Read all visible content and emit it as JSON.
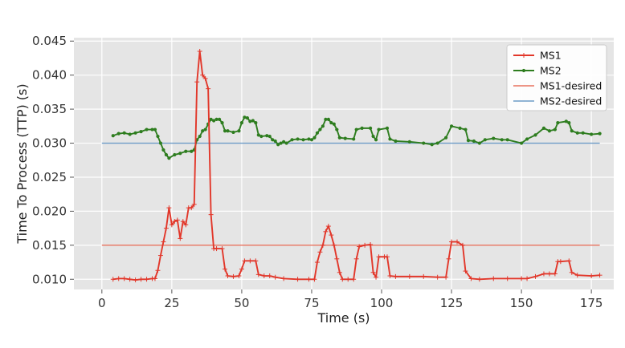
{
  "chart_data": {
    "type": "line",
    "title": "",
    "xlabel": "Time (s)",
    "ylabel": "Time To Process (TTP) (s)",
    "xlim": [
      -10,
      183
    ],
    "ylim": [
      0.0085,
      0.0455
    ],
    "xticks": [
      0,
      25,
      50,
      75,
      100,
      125,
      150,
      175
    ],
    "xtick_labels": [
      "0",
      "25",
      "50",
      "75",
      "100",
      "125",
      "150",
      "175"
    ],
    "yticks": [
      0.01,
      0.015,
      0.02,
      0.025,
      0.03,
      0.035,
      0.04,
      0.045
    ],
    "ytick_labels": [
      "0.010",
      "0.015",
      "0.020",
      "0.025",
      "0.030",
      "0.035",
      "0.040",
      "0.045"
    ],
    "grid": true,
    "legend_position": "top-right",
    "series": [
      {
        "name": "MS1",
        "color": "#e2372a",
        "marker": "plus",
        "points": [
          [
            4,
            0.01
          ],
          [
            6,
            0.0101
          ],
          [
            8,
            0.0101
          ],
          [
            10,
            0.01
          ],
          [
            12,
            0.0099
          ],
          [
            14,
            0.01
          ],
          [
            16,
            0.01
          ],
          [
            18,
            0.0101
          ],
          [
            19,
            0.0101
          ],
          [
            20,
            0.0113
          ],
          [
            21,
            0.0135
          ],
          [
            22,
            0.0155
          ],
          [
            23,
            0.0175
          ],
          [
            24,
            0.0205
          ],
          [
            25,
            0.018
          ],
          [
            26,
            0.0185
          ],
          [
            27,
            0.0187
          ],
          [
            28,
            0.016
          ],
          [
            29,
            0.0185
          ],
          [
            30,
            0.018
          ],
          [
            31,
            0.0205
          ],
          [
            32,
            0.0205
          ],
          [
            33,
            0.021
          ],
          [
            34,
            0.039
          ],
          [
            35,
            0.0435
          ],
          [
            36,
            0.04
          ],
          [
            37,
            0.0395
          ],
          [
            38,
            0.038
          ],
          [
            39,
            0.0195
          ],
          [
            40,
            0.0145
          ],
          [
            41,
            0.0145
          ],
          [
            43,
            0.0145
          ],
          [
            44,
            0.0115
          ],
          [
            45,
            0.0105
          ],
          [
            47,
            0.0104
          ],
          [
            49,
            0.0105
          ],
          [
            50,
            0.0115
          ],
          [
            51,
            0.0127
          ],
          [
            53,
            0.0127
          ],
          [
            55,
            0.0127
          ],
          [
            56,
            0.0107
          ],
          [
            58,
            0.0105
          ],
          [
            60,
            0.0105
          ],
          [
            62,
            0.0103
          ],
          [
            65,
            0.0101
          ],
          [
            70,
            0.01
          ],
          [
            74,
            0.01
          ],
          [
            76,
            0.01
          ],
          [
            77,
            0.0125
          ],
          [
            78,
            0.014
          ],
          [
            79,
            0.015
          ],
          [
            80,
            0.017
          ],
          [
            81,
            0.0178
          ],
          [
            82,
            0.0165
          ],
          [
            83,
            0.015
          ],
          [
            84,
            0.013
          ],
          [
            85,
            0.011
          ],
          [
            86,
            0.01
          ],
          [
            88,
            0.01
          ],
          [
            90,
            0.01
          ],
          [
            91,
            0.013
          ],
          [
            92,
            0.0148
          ],
          [
            94,
            0.015
          ],
          [
            96,
            0.0151
          ],
          [
            97,
            0.011
          ],
          [
            98,
            0.0103
          ],
          [
            99,
            0.0133
          ],
          [
            101,
            0.0133
          ],
          [
            102,
            0.0133
          ],
          [
            103,
            0.0105
          ],
          [
            105,
            0.0104
          ],
          [
            110,
            0.0104
          ],
          [
            115,
            0.0104
          ],
          [
            120,
            0.0103
          ],
          [
            123,
            0.0103
          ],
          [
            124,
            0.013
          ],
          [
            125,
            0.0155
          ],
          [
            127,
            0.0155
          ],
          [
            129,
            0.015
          ],
          [
            130,
            0.0112
          ],
          [
            132,
            0.0101
          ],
          [
            135,
            0.01
          ],
          [
            140,
            0.0101
          ],
          [
            145,
            0.0101
          ],
          [
            150,
            0.0101
          ],
          [
            152,
            0.0101
          ],
          [
            155,
            0.0104
          ],
          [
            158,
            0.0108
          ],
          [
            160,
            0.0108
          ],
          [
            162,
            0.0108
          ],
          [
            163,
            0.0126
          ],
          [
            164,
            0.0126
          ],
          [
            167,
            0.0127
          ],
          [
            168,
            0.011
          ],
          [
            170,
            0.0106
          ],
          [
            175,
            0.0105
          ],
          [
            178,
            0.0106
          ]
        ]
      },
      {
        "name": "MS2",
        "color": "#2e7d1f",
        "marker": "dot",
        "points": [
          [
            4,
            0.0311
          ],
          [
            6,
            0.0314
          ],
          [
            8,
            0.0315
          ],
          [
            10,
            0.0313
          ],
          [
            12,
            0.0315
          ],
          [
            14,
            0.0317
          ],
          [
            16,
            0.032
          ],
          [
            18,
            0.032
          ],
          [
            19,
            0.032
          ],
          [
            20,
            0.031
          ],
          [
            21,
            0.03
          ],
          [
            22,
            0.029
          ],
          [
            23,
            0.0283
          ],
          [
            24,
            0.0278
          ],
          [
            26,
            0.0283
          ],
          [
            28,
            0.0285
          ],
          [
            30,
            0.0288
          ],
          [
            32,
            0.0288
          ],
          [
            33,
            0.029
          ],
          [
            34,
            0.0305
          ],
          [
            35,
            0.031
          ],
          [
            36,
            0.0318
          ],
          [
            37,
            0.032
          ],
          [
            38,
            0.0328
          ],
          [
            39,
            0.0335
          ],
          [
            40,
            0.0333
          ],
          [
            41,
            0.0335
          ],
          [
            42,
            0.0335
          ],
          [
            43,
            0.033
          ],
          [
            44,
            0.0318
          ],
          [
            45,
            0.0318
          ],
          [
            47,
            0.0316
          ],
          [
            49,
            0.0318
          ],
          [
            50,
            0.033
          ],
          [
            51,
            0.0338
          ],
          [
            52,
            0.0337
          ],
          [
            53,
            0.0332
          ],
          [
            54,
            0.0333
          ],
          [
            55,
            0.033
          ],
          [
            56,
            0.0312
          ],
          [
            57,
            0.031
          ],
          [
            59,
            0.0311
          ],
          [
            60,
            0.031
          ],
          [
            61,
            0.0305
          ],
          [
            62,
            0.0303
          ],
          [
            63,
            0.0298
          ],
          [
            64,
            0.03
          ],
          [
            65,
            0.0302
          ],
          [
            66,
            0.03
          ],
          [
            68,
            0.0305
          ],
          [
            70,
            0.0306
          ],
          [
            72,
            0.0305
          ],
          [
            74,
            0.0306
          ],
          [
            75,
            0.0305
          ],
          [
            76,
            0.0308
          ],
          [
            77,
            0.0315
          ],
          [
            78,
            0.032
          ],
          [
            79,
            0.0325
          ],
          [
            80,
            0.0335
          ],
          [
            81,
            0.0335
          ],
          [
            82,
            0.033
          ],
          [
            83,
            0.0328
          ],
          [
            84,
            0.032
          ],
          [
            85,
            0.0308
          ],
          [
            87,
            0.0307
          ],
          [
            90,
            0.0306
          ],
          [
            91,
            0.032
          ],
          [
            93,
            0.0322
          ],
          [
            96,
            0.0322
          ],
          [
            97,
            0.031
          ],
          [
            98,
            0.0305
          ],
          [
            99,
            0.032
          ],
          [
            102,
            0.0322
          ],
          [
            103,
            0.0306
          ],
          [
            105,
            0.0303
          ],
          [
            110,
            0.0302
          ],
          [
            115,
            0.03
          ],
          [
            118,
            0.0298
          ],
          [
            120,
            0.03
          ],
          [
            123,
            0.0308
          ],
          [
            125,
            0.0325
          ],
          [
            128,
            0.0322
          ],
          [
            130,
            0.032
          ],
          [
            131,
            0.0304
          ],
          [
            133,
            0.0303
          ],
          [
            135,
            0.03
          ],
          [
            137,
            0.0305
          ],
          [
            140,
            0.0307
          ],
          [
            143,
            0.0305
          ],
          [
            145,
            0.0305
          ],
          [
            150,
            0.03
          ],
          [
            152,
            0.0306
          ],
          [
            155,
            0.0312
          ],
          [
            158,
            0.0322
          ],
          [
            160,
            0.0318
          ],
          [
            162,
            0.032
          ],
          [
            163,
            0.033
          ],
          [
            166,
            0.0332
          ],
          [
            167,
            0.033
          ],
          [
            168,
            0.0318
          ],
          [
            170,
            0.0315
          ],
          [
            172,
            0.0315
          ],
          [
            175,
            0.0313
          ],
          [
            178,
            0.0314
          ]
        ]
      },
      {
        "name": "MS1-desired",
        "color": "#e8735f",
        "marker": "none",
        "points": [
          [
            0,
            0.015
          ],
          [
            178,
            0.015
          ]
        ]
      },
      {
        "name": "MS2-desired",
        "color": "#6c9bc7",
        "marker": "none",
        "points": [
          [
            0,
            0.03
          ],
          [
            178,
            0.03
          ]
        ]
      }
    ]
  }
}
